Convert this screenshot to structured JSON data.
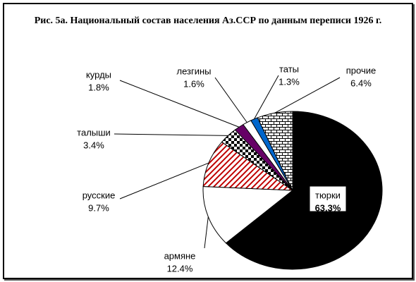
{
  "chart_data": {
    "type": "pie",
    "title": "Рис. 5а. Национальный состав населения Аз.ССР по данным переписи 1926 г.",
    "categories": [
      "тюрки",
      "армяне",
      "русские",
      "талыши",
      "курды",
      "лезгины",
      "таты",
      "прочие"
    ],
    "values": [
      63.3,
      12.4,
      9.7,
      3.4,
      1.8,
      1.6,
      1.3,
      6.4
    ],
    "value_labels": [
      "63.3%",
      "12.4%",
      "9.7%",
      "3.4%",
      "1.8%",
      "1.6%",
      "1.3%",
      "6.4%"
    ],
    "colors": [
      "#000000",
      "#ffffff",
      "#c00000",
      "#000000",
      "#660066",
      "#ffffff",
      "#0066cc",
      "#000000"
    ],
    "patterns": [
      "solid",
      "solid",
      "stripes",
      "checker",
      "solid",
      "solid",
      "solid",
      "bricks"
    ]
  }
}
